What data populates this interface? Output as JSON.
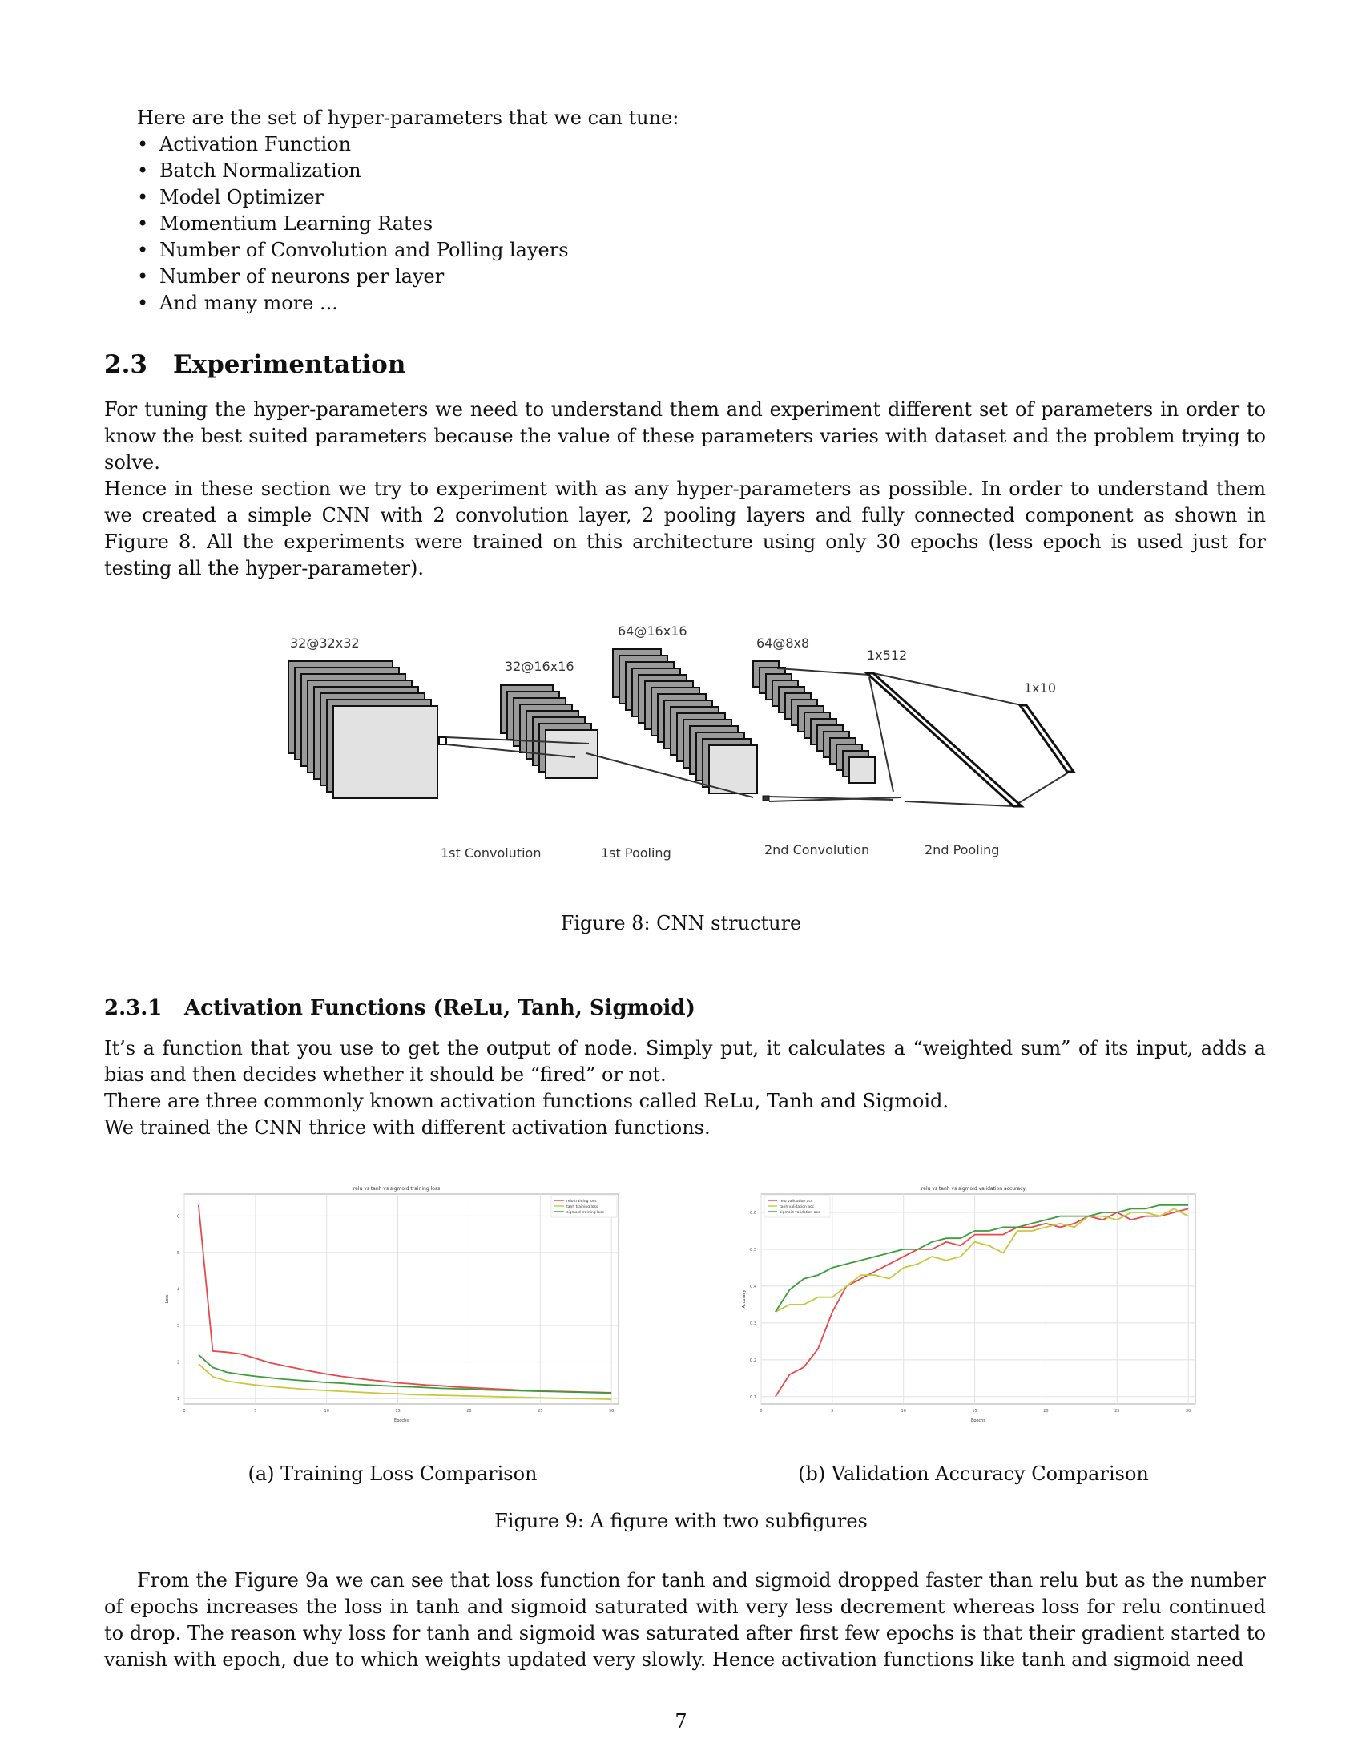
{
  "intro_line": "Here are the set of hyper-parameters that we can tune:",
  "hyperparams": [
    "Activation Function",
    "Batch Normalization",
    "Model Optimizer",
    "Momentium Learning Rates",
    "Number of Convolution and Polling layers",
    "Number of neurons per layer",
    "And many more ..."
  ],
  "section": {
    "number": "2.3",
    "title": "Experimentation"
  },
  "para1": "For tuning the hyper-parameters we need to understand them and experiment different set of parameters in order to know the best suited parameters because the value of these parameters varies with dataset and the problem trying to solve.",
  "para2": "Hence in these section we try to experiment with as any hyper-parameters as possible. In order to understand them we created a simple CNN with 2 convolution layer, 2 pooling layers and fully connected component as shown in Figure 8. All the experiments were trained on this architecture using only 30 epochs (less epoch is used just for testing all the hyper-parameter).",
  "cnn": {
    "labels": {
      "l1": "32@32x32",
      "l2": "32@16x16",
      "l3": "64@16x16",
      "l4": "64@8x8",
      "l5": "1x512",
      "l6": "1x10"
    },
    "stages": {
      "s1": "1st Convolution",
      "s2": "1st Pooling",
      "s3": "2nd Convolution",
      "s4": "2nd Pooling"
    }
  },
  "fig8_caption": "Figure 8: CNN structure",
  "subsection": {
    "number": "2.3.1",
    "title": "Activation Functions (ReLu, Tanh, Sigmoid)"
  },
  "para3a": "It’s a function that you use to get the output of node. Simply put, it calculates a “weighted sum” of its input, adds a bias and then decides whether it should be “fired” or not.",
  "para3b": "There are three commonly known activation functions called ReLu, Tanh and Sigmoid.",
  "para3c": "We trained the CNN thrice with different activation functions.",
  "subcap_a": "(a) Training Loss Comparison",
  "subcap_b": "(b) Validation Accuracy Comparison",
  "fig9_caption": "Figure 9: A figure with two subfigures",
  "para4": "From the Figure 9a we can see that loss function for tanh and sigmoid dropped faster than relu but as the number of epochs increases the loss in tanh and sigmoid saturated with very less decrement whereas loss for relu continued to drop. The reason why loss for tanh and sigmoid was saturated after first few epochs is that their gradient started to vanish with epoch, due to which weights updated very slowly. Hence activation functions like tanh and sigmoid need",
  "page_number": "7",
  "colors": {
    "relu": "#e8474b",
    "tanh": "#c6c93a",
    "sigmoid": "#3a9d3a"
  },
  "chart_data": [
    {
      "type": "line",
      "title": "relu vs tanh vs sigmoid training loss",
      "xlabel": "Epochs",
      "ylabel": "Loss",
      "xlim": [
        0,
        30.5
      ],
      "ylim": [
        0.85,
        6.6
      ],
      "xticks": [
        0,
        5,
        10,
        15,
        20,
        25,
        30
      ],
      "yticks": [
        1,
        2,
        3,
        4,
        5,
        6
      ],
      "grid": true,
      "legend": "top-right",
      "x": [
        1,
        2,
        3,
        4,
        5,
        6,
        7,
        8,
        9,
        10,
        11,
        12,
        13,
        14,
        15,
        16,
        17,
        18,
        19,
        20,
        21,
        22,
        23,
        24,
        25,
        26,
        27,
        28,
        29,
        30
      ],
      "series": [
        {
          "name": "relu training loss",
          "color": "#e8474b",
          "values": [
            6.3,
            2.3,
            2.27,
            2.22,
            2.1,
            1.98,
            1.9,
            1.82,
            1.74,
            1.67,
            1.61,
            1.56,
            1.51,
            1.47,
            1.43,
            1.4,
            1.37,
            1.35,
            1.32,
            1.3,
            1.28,
            1.26,
            1.24,
            1.22,
            1.21,
            1.2,
            1.19,
            1.18,
            1.17,
            1.16
          ]
        },
        {
          "name": "tanh training loss",
          "color": "#c6c93a",
          "values": [
            1.95,
            1.6,
            1.48,
            1.42,
            1.37,
            1.33,
            1.3,
            1.27,
            1.24,
            1.22,
            1.2,
            1.18,
            1.16,
            1.14,
            1.13,
            1.11,
            1.1,
            1.09,
            1.08,
            1.07,
            1.06,
            1.05,
            1.04,
            1.03,
            1.02,
            1.01,
            1.0,
            1.0,
            0.99,
            0.98
          ]
        },
        {
          "name": "sigmoid training loss",
          "color": "#3a9d3a",
          "values": [
            2.2,
            1.85,
            1.72,
            1.66,
            1.61,
            1.57,
            1.53,
            1.5,
            1.47,
            1.44,
            1.42,
            1.39,
            1.37,
            1.35,
            1.33,
            1.32,
            1.3,
            1.28,
            1.27,
            1.26,
            1.24,
            1.23,
            1.22,
            1.21,
            1.2,
            1.19,
            1.18,
            1.17,
            1.16,
            1.15
          ]
        }
      ]
    },
    {
      "type": "line",
      "title": "relu vs tanh vs sigmoid validation accuracy",
      "xlabel": "Epochs",
      "ylabel": "Accuracy",
      "xlim": [
        0,
        30.5
      ],
      "ylim": [
        0.08,
        0.65
      ],
      "xticks": [
        0,
        5,
        10,
        15,
        20,
        25,
        30
      ],
      "yticks": [
        0.1,
        0.2,
        0.3,
        0.4,
        0.5,
        0.6
      ],
      "grid": true,
      "legend": "top-left",
      "x": [
        1,
        2,
        3,
        4,
        5,
        6,
        7,
        8,
        9,
        10,
        11,
        12,
        13,
        14,
        15,
        16,
        17,
        18,
        19,
        20,
        21,
        22,
        23,
        24,
        25,
        26,
        27,
        28,
        29,
        30
      ],
      "series": [
        {
          "name": "relu validation acc",
          "color": "#e8474b",
          "values": [
            0.1,
            0.16,
            0.18,
            0.23,
            0.33,
            0.4,
            0.42,
            0.44,
            0.46,
            0.48,
            0.5,
            0.5,
            0.52,
            0.51,
            0.54,
            0.54,
            0.54,
            0.56,
            0.56,
            0.57,
            0.56,
            0.57,
            0.59,
            0.58,
            0.6,
            0.58,
            0.59,
            0.59,
            0.6,
            0.61
          ]
        },
        {
          "name": "tanh validation acc",
          "color": "#c6c93a",
          "values": [
            0.33,
            0.35,
            0.35,
            0.37,
            0.37,
            0.4,
            0.43,
            0.43,
            0.42,
            0.45,
            0.46,
            0.48,
            0.47,
            0.48,
            0.52,
            0.51,
            0.49,
            0.55,
            0.55,
            0.56,
            0.57,
            0.56,
            0.59,
            0.59,
            0.58,
            0.6,
            0.6,
            0.59,
            0.61,
            0.59
          ]
        },
        {
          "name": "sigmoid validation acc",
          "color": "#3a9d3a",
          "values": [
            0.33,
            0.39,
            0.42,
            0.43,
            0.45,
            0.46,
            0.47,
            0.48,
            0.49,
            0.5,
            0.5,
            0.52,
            0.53,
            0.53,
            0.55,
            0.55,
            0.56,
            0.56,
            0.57,
            0.58,
            0.59,
            0.59,
            0.59,
            0.6,
            0.6,
            0.61,
            0.61,
            0.62,
            0.62,
            0.62
          ]
        }
      ]
    }
  ]
}
